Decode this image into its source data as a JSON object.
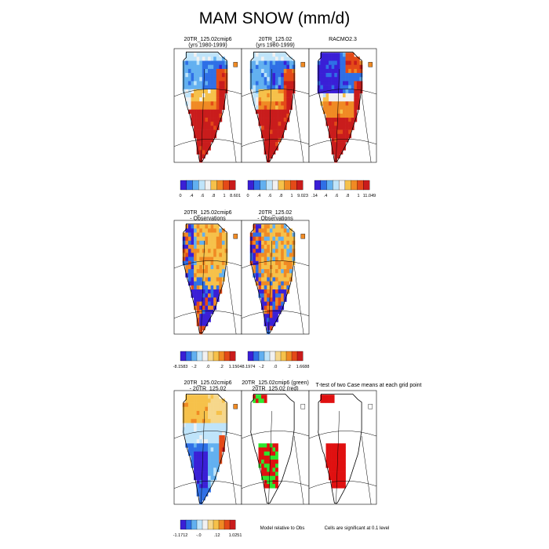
{
  "title": "MAM SNOW (mm/d)",
  "palette": {
    "sequential": [
      "#3a1fd6",
      "#2f6fe6",
      "#62b0f0",
      "#bfe4fa",
      "#f1f1f1",
      "#f6c14a",
      "#f08a24",
      "#e44a18",
      "#c91c1c"
    ],
    "diverging": [
      "#3a1fd6",
      "#2f6fe6",
      "#62b0f0",
      "#bfe4fa",
      "#f1f1f1",
      "#f6d78b",
      "#f6c14a",
      "#f08a24",
      "#e44a18",
      "#c91c1c"
    ],
    "green": "#2ee62e",
    "red": "#e01010"
  },
  "chart_data": [
    {
      "type": "heatmap",
      "panel": "top-1",
      "title_lines": [
        "20TR_125.02cmip6",
        "(yrs 1980-1999)"
      ],
      "colorbar_ticks": [
        "0",
        ".4",
        ".6",
        ".8",
        "1",
        "8.601"
      ],
      "min": 0,
      "max": 8.601
    },
    {
      "type": "heatmap",
      "panel": "top-2",
      "title_lines": [
        "20TR_125.02",
        "(yrs 1980-1999)"
      ],
      "colorbar_ticks": [
        "0",
        ".4",
        ".6",
        ".8",
        "1",
        "9.023"
      ],
      "min": 0,
      "max": 9.023
    },
    {
      "type": "heatmap",
      "panel": "top-3",
      "title_lines": [
        "RACMO2.3"
      ],
      "colorbar_ticks": [
        ".14",
        ".4",
        ".6",
        ".8",
        "1",
        "11.049"
      ],
      "min": 0.14,
      "max": 11.049
    },
    {
      "type": "heatmap",
      "panel": "mid-1",
      "title_lines": [
        "20TR_125.02cmip6",
        "- Observations"
      ],
      "colorbar_ticks": [
        "-8.1583",
        "-.2",
        ".0",
        ".2",
        "1.1504"
      ],
      "min": -8.1583,
      "max": 1.1504
    },
    {
      "type": "heatmap",
      "panel": "mid-2",
      "title_lines": [
        "20TR_125.02",
        "- Observations"
      ],
      "colorbar_ticks": [
        "-8.1974",
        "-.2",
        ".0",
        ".2",
        "1.6688"
      ],
      "min": -8.1974,
      "max": 1.6688
    },
    {
      "type": "heatmap",
      "panel": "bot-1",
      "title_lines": [
        "20TR_125.02cmip6",
        "- 20TR_125.02"
      ],
      "colorbar_ticks": [
        "-1.1712",
        "-.0",
        ".12",
        "1.0251"
      ],
      "min": -1.1712,
      "max": 1.0251
    },
    {
      "type": "heatmap",
      "panel": "bot-2",
      "title_lines": [
        "20TR_125.02cmip6 (green)",
        "20TR_125.02 (red)"
      ],
      "legend_text": "Model relative to Obs"
    },
    {
      "type": "heatmap",
      "panel": "bot-3",
      "title_lines": [
        "T-test of two Case means at each grid point"
      ],
      "legend_text": "Cells are significant at 0.1 level"
    }
  ]
}
